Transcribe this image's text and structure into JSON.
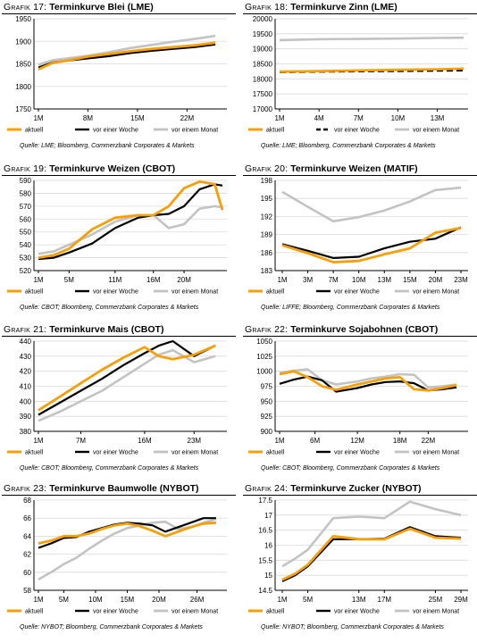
{
  "colors": {
    "aktuell": "#f5a00a",
    "woche": "#000000",
    "monat": "#c3c3c3"
  },
  "legend_labels": {
    "aktuell": "aktuell",
    "woche": "vor einer Woche",
    "monat": "vor einem Monat"
  },
  "chart_data": [
    {
      "id": "c17",
      "type": "line",
      "prefix": "Grafik 17:",
      "title": "Terminkurve Blei (LME)",
      "source": "Quelle: LME; Bloomberg, Commerzbank Corporates & Markets",
      "ylim": [
        1750,
        1950
      ],
      "yticks": [
        1750,
        1800,
        1850,
        1900,
        1950
      ],
      "xlim": [
        1,
        27
      ],
      "xticks": [
        1,
        8,
        15,
        22
      ],
      "xticklabels": [
        "1M",
        "8M",
        "15M",
        "22M"
      ],
      "woche_dashed": false,
      "series": [
        {
          "key": "aktuell",
          "x": [
            1,
            3,
            5,
            8,
            11,
            14,
            17,
            20,
            23,
            26
          ],
          "values": [
            1838,
            1852,
            1857,
            1866,
            1872,
            1878,
            1883,
            1887,
            1891,
            1897
          ]
        },
        {
          "key": "woche",
          "x": [
            1,
            3,
            5,
            8,
            11,
            14,
            17,
            20,
            23,
            26
          ],
          "values": [
            1842,
            1853,
            1857,
            1862,
            1867,
            1874,
            1879,
            1883,
            1887,
            1893
          ]
        },
        {
          "key": "monat",
          "x": [
            1,
            3,
            5,
            8,
            11,
            14,
            17,
            20,
            23,
            26
          ],
          "values": [
            1848,
            1858,
            1862,
            1868,
            1876,
            1885,
            1892,
            1899,
            1905,
            1912
          ]
        }
      ]
    },
    {
      "id": "c18",
      "type": "line",
      "prefix": "Grafik 18:",
      "title": "Terminkurve Zinn (LME)",
      "source": "Quelle: LME; Bloomberg, Commerzbank Corporates & Markets",
      "ylim": [
        17000,
        20000
      ],
      "yticks": [
        17000,
        17500,
        18000,
        18500,
        19000,
        19500,
        20000
      ],
      "xlim": [
        1,
        15
      ],
      "xticks": [
        1,
        4,
        7,
        10,
        13
      ],
      "xticklabels": [
        "1M",
        "4M",
        "7M",
        "10M",
        "13M"
      ],
      "woche_dashed": true,
      "series": [
        {
          "key": "aktuell",
          "x": [
            1,
            4,
            7,
            10,
            13,
            15
          ],
          "values": [
            18240,
            18260,
            18280,
            18300,
            18320,
            18340
          ]
        },
        {
          "key": "woche",
          "x": [
            1,
            4,
            7,
            10,
            13,
            15
          ],
          "values": [
            18220,
            18240,
            18250,
            18260,
            18270,
            18280
          ]
        },
        {
          "key": "monat",
          "x": [
            1,
            4,
            7,
            10,
            13,
            15
          ],
          "values": [
            19290,
            19320,
            19330,
            19340,
            19360,
            19370
          ]
        }
      ]
    },
    {
      "id": "c19",
      "type": "line",
      "prefix": "Grafik 19:",
      "title": "Terminkurve Weizen (CBOT)",
      "source": "Quelle: CBOT; Bloomberg, Commerzbank Corporates & Markets",
      "ylim": [
        520,
        590
      ],
      "yticks": [
        520,
        530,
        540,
        550,
        560,
        570,
        580,
        590
      ],
      "xlim": [
        1,
        25
      ],
      "xticks": [
        1,
        5,
        11,
        16,
        20
      ],
      "xticklabels": [
        "1M",
        "5M",
        "11M",
        "16M",
        "20M"
      ],
      "woche_dashed": false,
      "series": [
        {
          "key": "aktuell",
          "x": [
            1,
            3,
            5,
            8,
            11,
            14,
            16,
            18,
            20,
            22,
            24,
            25
          ],
          "values": [
            530,
            532,
            537,
            552,
            561,
            563,
            563,
            570,
            584,
            589,
            587,
            567
          ]
        },
        {
          "key": "woche",
          "x": [
            1,
            3,
            5,
            8,
            11,
            14,
            16,
            18,
            20,
            22,
            24,
            25
          ],
          "values": [
            529,
            530,
            534,
            541,
            553,
            561,
            563,
            564,
            570,
            583,
            587,
            586
          ]
        },
        {
          "key": "monat",
          "x": [
            1,
            3,
            5,
            8,
            11,
            14,
            16,
            18,
            20,
            22,
            24,
            25
          ],
          "values": [
            533,
            535,
            540,
            548,
            558,
            563,
            563,
            553,
            556,
            568,
            570,
            569
          ]
        }
      ]
    },
    {
      "id": "c20",
      "type": "line",
      "prefix": "Grafik 20:",
      "title": "Terminkurve Weizen (MATIF)",
      "source": "Quelle: LIFFE; Bloomberg, Commerzbank Corporates & Markets",
      "ylim": [
        183,
        198
      ],
      "yticks": [
        183,
        186,
        189,
        192,
        195,
        198
      ],
      "xlim": [
        1,
        24
      ],
      "xticks": [
        1,
        3,
        7,
        10,
        13,
        15,
        20,
        23
      ],
      "xticklabels": [
        "1M",
        "3M",
        "7M",
        "10M",
        "13M",
        "15M",
        "20M",
        "23M"
      ],
      "tickpos": [
        0,
        1,
        2,
        3,
        4,
        5,
        6,
        7
      ],
      "woche_dashed": false,
      "series": [
        {
          "key": "aktuell",
          "x": [
            1,
            3,
            7,
            10,
            13,
            15,
            20,
            23
          ],
          "values": [
            187.2,
            185.9,
            184.4,
            184.6,
            185.7,
            186.7,
            189.3,
            190.1
          ]
        },
        {
          "key": "woche",
          "x": [
            1,
            3,
            7,
            10,
            13,
            15,
            20,
            23
          ],
          "values": [
            187.4,
            186.3,
            185.1,
            185.3,
            186.7,
            187.8,
            188.3,
            190.2
          ]
        },
        {
          "key": "monat",
          "x": [
            1,
            3,
            7,
            10,
            13,
            15,
            20,
            23
          ],
          "values": [
            196.1,
            193.6,
            191.2,
            191.9,
            193.0,
            194.5,
            196.4,
            196.8
          ]
        }
      ]
    },
    {
      "id": "c21",
      "type": "line",
      "prefix": "Grafik 21:",
      "title": "Terminkurve Mais (CBOT)",
      "source": "Quelle: CBOT; Bloomberg, Commerzbank Corporates & Markets",
      "ylim": [
        380,
        440
      ],
      "yticks": [
        380,
        390,
        400,
        410,
        420,
        430,
        440
      ],
      "xlim": [
        1,
        27
      ],
      "xticks": [
        1,
        7,
        16,
        23
      ],
      "xticklabels": [
        "1M",
        "7M",
        "16M",
        "23M"
      ],
      "woche_dashed": false,
      "series": [
        {
          "key": "aktuell",
          "x": [
            1,
            4,
            7,
            10,
            13,
            16,
            18,
            20,
            23,
            26
          ],
          "values": [
            394,
            403,
            412,
            421,
            429,
            436,
            430,
            428,
            431,
            437
          ]
        },
        {
          "key": "woche",
          "x": [
            1,
            4,
            7,
            10,
            13,
            16,
            18,
            20,
            23,
            26
          ],
          "values": [
            391,
            399,
            407,
            415,
            424,
            432,
            437,
            440,
            430,
            437
          ]
        },
        {
          "key": "monat",
          "x": [
            1,
            4,
            7,
            10,
            13,
            16,
            18,
            20,
            23,
            26
          ],
          "values": [
            387,
            393,
            400,
            407,
            416,
            425,
            431,
            434,
            426,
            430
          ]
        }
      ]
    },
    {
      "id": "c22",
      "type": "line",
      "prefix": "Grafik 22:",
      "title": "Terminkurve Sojabohnen (CBOT)",
      "source": "Quelle: CBOT; Bloomberg, Commerzbank Corporates & Markets",
      "ylim": [
        900,
        1050
      ],
      "yticks": [
        900,
        925,
        950,
        975,
        1000,
        1025,
        1050
      ],
      "xlim": [
        1,
        27
      ],
      "xticks": [
        1,
        6,
        12,
        18,
        22
      ],
      "xticklabels": [
        "1M",
        "6M",
        "12M",
        "18M",
        "22M"
      ],
      "woche_dashed": false,
      "series": [
        {
          "key": "aktuell",
          "x": [
            1,
            3,
            5,
            7,
            9,
            12,
            14,
            16,
            18,
            20,
            22,
            24,
            26
          ],
          "values": [
            995,
            1000,
            990,
            975,
            969,
            978,
            983,
            988,
            990,
            970,
            968,
            972,
            977
          ]
        },
        {
          "key": "woche",
          "x": [
            1,
            3,
            5,
            7,
            9,
            12,
            14,
            16,
            18,
            20,
            22,
            24,
            26
          ],
          "values": [
            979,
            986,
            991,
            985,
            966,
            972,
            978,
            982,
            983,
            980,
            968,
            970,
            973
          ]
        },
        {
          "key": "monat",
          "x": [
            1,
            3,
            5,
            7,
            9,
            12,
            14,
            16,
            18,
            20,
            22,
            24,
            26
          ],
          "values": [
            997,
            1001,
            1003,
            985,
            978,
            983,
            988,
            991,
            995,
            994,
            973,
            975,
            978
          ]
        }
      ]
    },
    {
      "id": "c23",
      "type": "line",
      "prefix": "Grafik 23:",
      "title": "Terminkurve Baumwolle (NYBOT)",
      "source": "Quelle: NYBOT; Bloomberg, Commerzbank Corporates & Markets",
      "ylim": [
        58,
        68
      ],
      "yticks": [
        58,
        60,
        62,
        64,
        66,
        68
      ],
      "xlim": [
        1,
        30
      ],
      "xticks": [
        1,
        5,
        10,
        15,
        20,
        26
      ],
      "xticklabels": [
        "1M",
        "5M",
        "10M",
        "15M",
        "20M",
        "26M"
      ],
      "woche_dashed": false,
      "series": [
        {
          "key": "aktuell",
          "x": [
            1,
            3,
            5,
            7,
            9,
            11,
            13,
            15,
            17,
            19,
            21,
            23,
            25,
            27,
            29
          ],
          "values": [
            63.2,
            63.5,
            64.0,
            64.0,
            64.3,
            64.8,
            65.2,
            65.4,
            65.1,
            64.6,
            64.0,
            64.5,
            65.0,
            65.4,
            65.5
          ]
        },
        {
          "key": "woche",
          "x": [
            1,
            3,
            5,
            7,
            9,
            11,
            13,
            15,
            17,
            19,
            21,
            23,
            25,
            27,
            29
          ],
          "values": [
            62.7,
            63.2,
            63.8,
            63.9,
            64.5,
            64.9,
            65.3,
            65.5,
            65.4,
            65.2,
            64.5,
            65.0,
            65.5,
            66.0,
            66.0
          ]
        },
        {
          "key": "monat",
          "x": [
            1,
            3,
            5,
            7,
            9,
            11,
            13,
            15,
            17,
            19,
            21,
            23,
            25,
            27,
            29
          ],
          "values": [
            59.2,
            60.0,
            60.9,
            61.6,
            62.6,
            63.5,
            64.3,
            64.9,
            65.2,
            65.5,
            65.6,
            64.8,
            65.0,
            65.5,
            65.9
          ]
        }
      ]
    },
    {
      "id": "c24",
      "type": "line",
      "prefix": "Grafik 24:",
      "title": "Terminkurve Zucker (NYBOT)",
      "source": "Quelle: NYBOT; Bloomberg, Commerzbank Corporates & Markets",
      "ylim": [
        14.5,
        17.5
      ],
      "yticks": [
        14.5,
        15.0,
        15.5,
        16.0,
        16.5,
        17.0,
        17.5
      ],
      "xlim": [
        1,
        29
      ],
      "xticks": [
        1,
        5,
        13,
        17,
        25,
        29
      ],
      "xticklabels": [
        "1M",
        "5M",
        "13M",
        "17M",
        "25M",
        "29M"
      ],
      "tickpos": [
        0,
        1,
        3,
        4,
        6,
        7
      ],
      "woche_dashed": false,
      "series": [
        {
          "key": "aktuell",
          "x": [
            1,
            3,
            5,
            9,
            13,
            17,
            21,
            25,
            29
          ],
          "values": [
            14.85,
            15.05,
            15.35,
            16.3,
            16.2,
            16.2,
            16.55,
            16.25,
            16.22
          ]
        },
        {
          "key": "woche",
          "x": [
            1,
            3,
            5,
            9,
            13,
            17,
            21,
            25,
            29
          ],
          "values": [
            14.8,
            15.0,
            15.3,
            16.2,
            16.2,
            16.22,
            16.6,
            16.3,
            16.25
          ]
        },
        {
          "key": "monat",
          "x": [
            1,
            3,
            5,
            9,
            13,
            17,
            21,
            25,
            29
          ],
          "values": [
            15.3,
            15.55,
            15.85,
            16.9,
            16.95,
            16.9,
            17.45,
            17.2,
            17.0
          ]
        }
      ]
    }
  ]
}
